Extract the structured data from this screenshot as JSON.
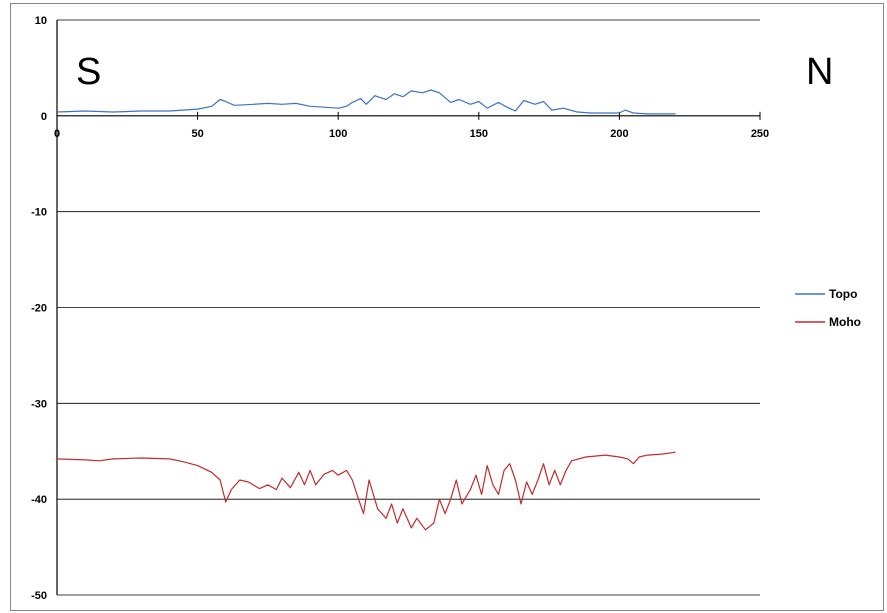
{
  "chart_data": {
    "type": "line",
    "title": "",
    "xlabel": "",
    "ylabel": "",
    "xlim": [
      0,
      250
    ],
    "ylim": [
      -50,
      10
    ],
    "x_ticks": [
      "0",
      "50",
      "100",
      "150",
      "200",
      "250"
    ],
    "y_ticks": [
      "10",
      "0",
      "-10",
      "-20",
      "-30",
      "-40",
      "-50"
    ],
    "grid": "horizontal",
    "legend_position": "right",
    "annotations": {
      "left": "S",
      "right": "N"
    },
    "series": [
      {
        "name": "Topo",
        "color": "#3b73c4",
        "points": [
          [
            0,
            0.4
          ],
          [
            10,
            0.5
          ],
          [
            20,
            0.4
          ],
          [
            30,
            0.5
          ],
          [
            40,
            0.5
          ],
          [
            50,
            0.7
          ],
          [
            55,
            1.0
          ],
          [
            58,
            1.7
          ],
          [
            60,
            1.5
          ],
          [
            63,
            1.1
          ],
          [
            70,
            1.2
          ],
          [
            75,
            1.3
          ],
          [
            80,
            1.2
          ],
          [
            85,
            1.3
          ],
          [
            90,
            1.0
          ],
          [
            95,
            0.9
          ],
          [
            100,
            0.8
          ],
          [
            103,
            1.0
          ],
          [
            105,
            1.4
          ],
          [
            108,
            1.8
          ],
          [
            110,
            1.2
          ],
          [
            113,
            2.1
          ],
          [
            117,
            1.7
          ],
          [
            120,
            2.3
          ],
          [
            123,
            2.0
          ],
          [
            126,
            2.6
          ],
          [
            130,
            2.4
          ],
          [
            133,
            2.7
          ],
          [
            136,
            2.4
          ],
          [
            140,
            1.4
          ],
          [
            143,
            1.7
          ],
          [
            147,
            1.2
          ],
          [
            150,
            1.5
          ],
          [
            153,
            0.8
          ],
          [
            157,
            1.4
          ],
          [
            160,
            0.9
          ],
          [
            163,
            0.5
          ],
          [
            166,
            1.6
          ],
          [
            170,
            1.2
          ],
          [
            173,
            1.5
          ],
          [
            176,
            0.6
          ],
          [
            180,
            0.8
          ],
          [
            185,
            0.4
          ],
          [
            190,
            0.3
          ],
          [
            195,
            0.3
          ],
          [
            200,
            0.3
          ],
          [
            202,
            0.6
          ],
          [
            205,
            0.3
          ],
          [
            210,
            0.2
          ],
          [
            215,
            0.2
          ],
          [
            220,
            0.2
          ]
        ]
      },
      {
        "name": "Moho",
        "color": "#c42b2b",
        "points": [
          [
            0,
            -35.8
          ],
          [
            10,
            -35.9
          ],
          [
            15,
            -36.0
          ],
          [
            20,
            -35.8
          ],
          [
            30,
            -35.7
          ],
          [
            40,
            -35.8
          ],
          [
            45,
            -36.1
          ],
          [
            50,
            -36.5
          ],
          [
            55,
            -37.2
          ],
          [
            58,
            -38.0
          ],
          [
            60,
            -40.3
          ],
          [
            62,
            -39.0
          ],
          [
            65,
            -38.0
          ],
          [
            68,
            -38.2
          ],
          [
            72,
            -38.9
          ],
          [
            75,
            -38.5
          ],
          [
            78,
            -39.0
          ],
          [
            80,
            -37.8
          ],
          [
            83,
            -38.8
          ],
          [
            86,
            -37.2
          ],
          [
            88,
            -38.5
          ],
          [
            90,
            -37.0
          ],
          [
            92,
            -38.5
          ],
          [
            95,
            -37.4
          ],
          [
            98,
            -37.0
          ],
          [
            100,
            -37.5
          ],
          [
            103,
            -37.0
          ],
          [
            105,
            -38.0
          ],
          [
            107,
            -39.8
          ],
          [
            109,
            -41.5
          ],
          [
            111,
            -38.0
          ],
          [
            114,
            -41.0
          ],
          [
            117,
            -42.0
          ],
          [
            119,
            -40.5
          ],
          [
            121,
            -42.5
          ],
          [
            123,
            -41.0
          ],
          [
            126,
            -43.0
          ],
          [
            128,
            -42.0
          ],
          [
            131,
            -43.2
          ],
          [
            134,
            -42.5
          ],
          [
            136,
            -40.0
          ],
          [
            138,
            -41.5
          ],
          [
            140,
            -40.0
          ],
          [
            142,
            -38.0
          ],
          [
            144,
            -40.5
          ],
          [
            147,
            -39.0
          ],
          [
            149,
            -37.5
          ],
          [
            151,
            -39.5
          ],
          [
            153,
            -36.5
          ],
          [
            155,
            -38.5
          ],
          [
            157,
            -39.5
          ],
          [
            159,
            -37.0
          ],
          [
            161,
            -36.3
          ],
          [
            163,
            -38.0
          ],
          [
            165,
            -40.5
          ],
          [
            167,
            -38.2
          ],
          [
            169,
            -39.5
          ],
          [
            171,
            -38.0
          ],
          [
            173,
            -36.3
          ],
          [
            175,
            -38.5
          ],
          [
            177,
            -37.0
          ],
          [
            179,
            -38.5
          ],
          [
            181,
            -37.0
          ],
          [
            183,
            -36.0
          ],
          [
            188,
            -35.6
          ],
          [
            195,
            -35.4
          ],
          [
            200,
            -35.6
          ],
          [
            203,
            -35.8
          ],
          [
            205,
            -36.3
          ],
          [
            207,
            -35.6
          ],
          [
            210,
            -35.4
          ],
          [
            215,
            -35.3
          ],
          [
            220,
            -35.1
          ]
        ]
      }
    ]
  }
}
